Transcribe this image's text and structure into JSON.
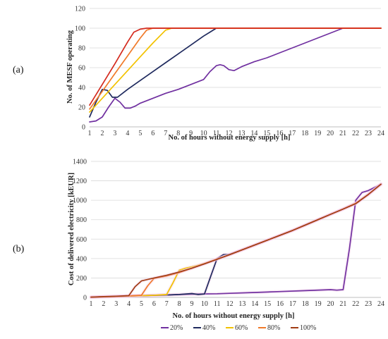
{
  "chart_data": [
    {
      "panel_label": "(a)",
      "type": "line",
      "xlabel": "No. of hours without energy supply [h]",
      "ylabel": "No. of MESF operating",
      "x": [
        1,
        2,
        3,
        4,
        5,
        6,
        7,
        8,
        9,
        10,
        11,
        12,
        13,
        14,
        15,
        16,
        17,
        18,
        19,
        20,
        21,
        22,
        23,
        24
      ],
      "xlim": [
        1,
        24
      ],
      "ylim": [
        0,
        120
      ],
      "yticks": [
        0,
        20,
        40,
        60,
        80,
        100,
        120
      ],
      "grid": true,
      "series": [
        {
          "name": "20%",
          "color": "#7030A0",
          "points": [
            [
              1,
              5
            ],
            [
              1.5,
              6
            ],
            [
              2,
              10
            ],
            [
              2.5,
              20
            ],
            [
              3,
              29
            ],
            [
              3.4,
              25
            ],
            [
              3.8,
              19
            ],
            [
              4.2,
              19
            ],
            [
              4.6,
              21
            ],
            [
              5,
              24
            ],
            [
              6,
              29
            ],
            [
              7,
              34
            ],
            [
              8,
              38
            ],
            [
              9,
              43
            ],
            [
              10,
              48
            ],
            [
              10.5,
              56
            ],
            [
              11,
              62
            ],
            [
              11.3,
              63
            ],
            [
              11.6,
              62
            ],
            [
              12,
              58
            ],
            [
              12.4,
              57
            ],
            [
              13,
              61
            ],
            [
              14,
              66
            ],
            [
              15,
              70
            ],
            [
              16,
              75
            ],
            [
              17,
              80
            ],
            [
              18,
              85
            ],
            [
              19,
              90
            ],
            [
              20,
              95
            ],
            [
              21,
              100
            ],
            [
              22,
              100
            ],
            [
              23,
              100
            ],
            [
              24,
              100
            ]
          ]
        },
        {
          "name": "40%",
          "color": "#1F2A5E",
          "points": [
            [
              1,
              10
            ],
            [
              1.5,
              25
            ],
            [
              2,
              38
            ],
            [
              2.4,
              37
            ],
            [
              2.8,
              30
            ],
            [
              3.2,
              30
            ],
            [
              4,
              38
            ],
            [
              5,
              47
            ],
            [
              6,
              56
            ],
            [
              7,
              65
            ],
            [
              8,
              74
            ],
            [
              9,
              83
            ],
            [
              10,
              92
            ],
            [
              10.5,
              96
            ],
            [
              11,
              100
            ],
            [
              12,
              100
            ],
            [
              24,
              100
            ]
          ]
        },
        {
          "name": "60%",
          "color": "#F2C200",
          "points": [
            [
              1,
              15
            ],
            [
              2,
              29
            ],
            [
              3,
              43
            ],
            [
              4,
              57
            ],
            [
              5,
              71
            ],
            [
              6,
              85
            ],
            [
              7,
              98
            ],
            [
              7.5,
              100
            ],
            [
              8,
              100
            ],
            [
              24,
              100
            ]
          ]
        },
        {
          "name": "80%",
          "color": "#F07A2A",
          "points": [
            [
              1,
              18
            ],
            [
              2,
              36
            ],
            [
              3,
              54
            ],
            [
              4,
              72
            ],
            [
              5,
              90
            ],
            [
              5.5,
              98
            ],
            [
              6,
              100
            ],
            [
              24,
              100
            ]
          ]
        },
        {
          "name": "100%",
          "color": "#D42A1E",
          "points": [
            [
              1,
              22
            ],
            [
              2,
              43
            ],
            [
              3,
              64
            ],
            [
              4,
              86
            ],
            [
              4.5,
              96
            ],
            [
              5,
              99
            ],
            [
              5.5,
              100
            ],
            [
              24,
              100
            ]
          ]
        }
      ]
    },
    {
      "panel_label": "(b)",
      "type": "line",
      "xlabel": "No. of hours without energy supply [h]",
      "ylabel": "Cost of delivered electricity [kEUR]",
      "x": [
        1,
        2,
        3,
        4,
        5,
        6,
        7,
        8,
        9,
        10,
        11,
        12,
        13,
        14,
        15,
        16,
        17,
        18,
        19,
        20,
        21,
        22,
        23,
        24
      ],
      "xlim": [
        1,
        24
      ],
      "ylim": [
        0,
        1400
      ],
      "yticks": [
        0,
        200,
        400,
        600,
        800,
        1000,
        1200,
        1400
      ],
      "grid": true,
      "series": [
        {
          "name": "20%",
          "color": "#7030A0",
          "points": [
            [
              1,
              3
            ],
            [
              4,
              15
            ],
            [
              6,
              22
            ],
            [
              8,
              30
            ],
            [
              10,
              36
            ],
            [
              11,
              38
            ],
            [
              12,
              42
            ],
            [
              14,
              51
            ],
            [
              16,
              60
            ],
            [
              18,
              70
            ],
            [
              20,
              80
            ],
            [
              20.5,
              75
            ],
            [
              21,
              80
            ],
            [
              21.5,
              500
            ],
            [
              22,
              1000
            ],
            [
              22.5,
              1080
            ],
            [
              23,
              1100
            ],
            [
              24,
              1165
            ]
          ]
        },
        {
          "name": "40%",
          "color": "#1F2A5E",
          "points": [
            [
              1,
              3
            ],
            [
              3,
              10
            ],
            [
              5,
              18
            ],
            [
              7,
              25
            ],
            [
              8,
              30
            ],
            [
              9,
              40
            ],
            [
              9.5,
              30
            ],
            [
              10,
              35
            ],
            [
              10.5,
              220
            ],
            [
              11,
              400
            ],
            [
              11.5,
              440
            ],
            [
              12,
              445
            ],
            [
              13,
              490
            ],
            [
              14,
              540
            ],
            [
              15,
              590
            ],
            [
              16,
              640
            ],
            [
              17,
              690
            ],
            [
              18,
              745
            ],
            [
              19,
              800
            ],
            [
              20,
              855
            ],
            [
              21,
              910
            ],
            [
              22,
              970
            ],
            [
              23,
              1060
            ],
            [
              24,
              1165
            ]
          ]
        },
        {
          "name": "60%",
          "color": "#F2C200",
          "points": [
            [
              1,
              3
            ],
            [
              3,
              10
            ],
            [
              5,
              18
            ],
            [
              6,
              22
            ],
            [
              7,
              30
            ],
            [
              7.5,
              150
            ],
            [
              8,
              280
            ],
            [
              8.5,
              300
            ],
            [
              9,
              315
            ],
            [
              10,
              350
            ],
            [
              11,
              395
            ],
            [
              12,
              440
            ],
            [
              13,
              490
            ],
            [
              14,
              540
            ],
            [
              15,
              590
            ],
            [
              16,
              640
            ],
            [
              17,
              690
            ],
            [
              18,
              745
            ],
            [
              19,
              800
            ],
            [
              20,
              855
            ],
            [
              21,
              910
            ],
            [
              22,
              970
            ],
            [
              23,
              1060
            ],
            [
              24,
              1165
            ]
          ]
        },
        {
          "name": "80%",
          "color": "#F07A2A",
          "points": [
            [
              1,
              3
            ],
            [
              3,
              10
            ],
            [
              4,
              15
            ],
            [
              5,
              22
            ],
            [
              5.5,
              120
            ],
            [
              6,
              195
            ],
            [
              7,
              220
            ],
            [
              8,
              255
            ],
            [
              9,
              300
            ],
            [
              10,
              348
            ],
            [
              11,
              395
            ],
            [
              12,
              440
            ],
            [
              13,
              490
            ],
            [
              14,
              540
            ],
            [
              15,
              590
            ],
            [
              16,
              640
            ],
            [
              17,
              690
            ],
            [
              18,
              745
            ],
            [
              19,
              800
            ],
            [
              20,
              855
            ],
            [
              21,
              910
            ],
            [
              22,
              970
            ],
            [
              23,
              1060
            ],
            [
              24,
              1165
            ]
          ]
        },
        {
          "name": "100%",
          "color": "#A03C14",
          "points": [
            [
              1,
              3
            ],
            [
              2,
              8
            ],
            [
              3,
              12
            ],
            [
              4,
              18
            ],
            [
              4.5,
              110
            ],
            [
              5,
              170
            ],
            [
              6,
              200
            ],
            [
              7,
              228
            ],
            [
              8,
              262
            ],
            [
              9,
              300
            ],
            [
              10,
              345
            ],
            [
              11,
              392
            ],
            [
              12,
              440
            ],
            [
              13,
              490
            ],
            [
              14,
              540
            ],
            [
              15,
              590
            ],
            [
              16,
              640
            ],
            [
              17,
              690
            ],
            [
              18,
              745
            ],
            [
              19,
              800
            ],
            [
              20,
              855
            ],
            [
              21,
              910
            ],
            [
              22,
              965
            ],
            [
              23,
              1060
            ],
            [
              24,
              1165
            ]
          ]
        }
      ],
      "legend": {
        "position": "bottom-center",
        "entries": [
          "20%",
          "40%",
          "60%",
          "80%",
          "100%"
        ]
      }
    }
  ]
}
